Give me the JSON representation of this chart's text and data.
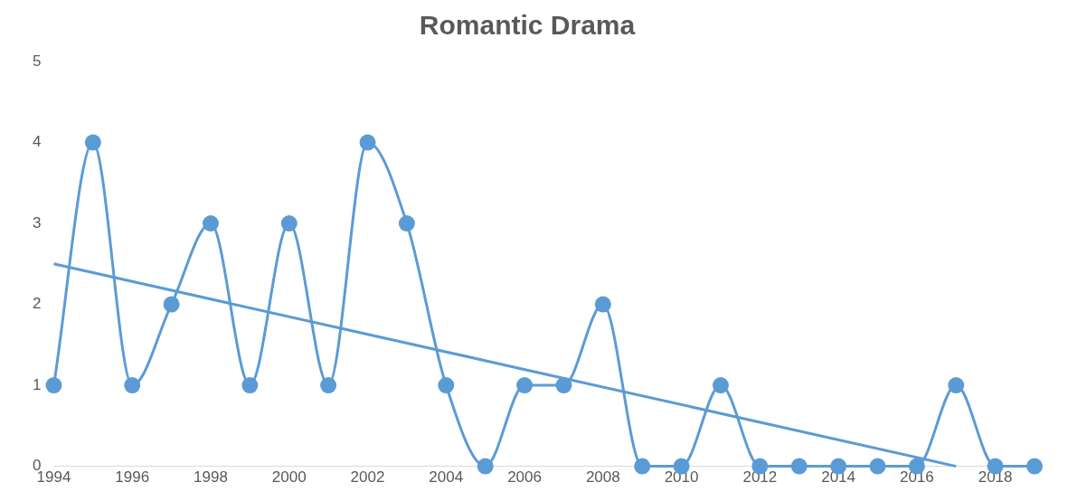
{
  "chart_data": {
    "type": "line",
    "title": "Romantic Drama",
    "x": [
      1994,
      1995,
      1996,
      1997,
      1998,
      1999,
      2000,
      2001,
      2002,
      2003,
      2004,
      2005,
      2006,
      2007,
      2008,
      2009,
      2010,
      2011,
      2012,
      2013,
      2014,
      2015,
      2016,
      2017,
      2018,
      2019
    ],
    "series": [
      {
        "color": "#5b9bd5",
        "marker": "circle",
        "values": [
          1,
          4,
          1,
          2,
          3,
          1,
          3,
          1,
          4,
          3,
          1,
          0,
          1,
          1,
          2,
          0,
          0,
          1,
          0,
          0,
          0,
          0,
          0,
          1,
          0,
          0
        ]
      },
      {
        "color": "#5b9bd5",
        "marker": "none",
        "x": [
          1994,
          2017
        ],
        "values": [
          2.5,
          0
        ]
      }
    ],
    "xlim": [
      1994,
      2019
    ],
    "xticks": [
      1994,
      1996,
      1998,
      2000,
      2002,
      2004,
      2006,
      2008,
      2010,
      2012,
      2014,
      2016,
      2018
    ],
    "ylim": [
      0,
      5
    ],
    "yticks": [
      0,
      1,
      2,
      3,
      4,
      5
    ],
    "grid": false,
    "legend": false
  }
}
